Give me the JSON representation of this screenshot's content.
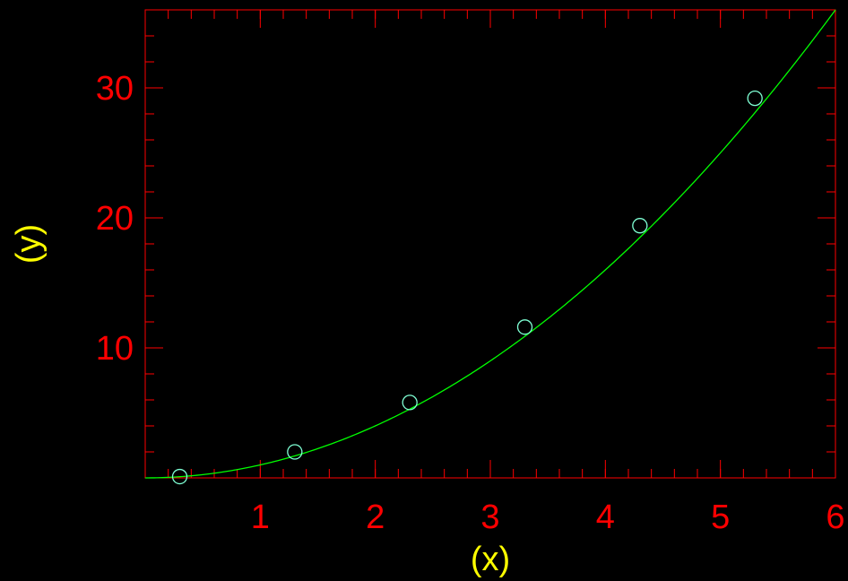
{
  "chart_data": {
    "type": "scatter",
    "title": "",
    "xlabel": "(x)",
    "ylabel": "(y)",
    "xlim": [
      0,
      6
    ],
    "ylim": [
      0,
      36
    ],
    "x_ticks": [
      1,
      2,
      3,
      4,
      5,
      6
    ],
    "y_ticks": [
      10,
      20,
      30
    ],
    "x_minor_step": 0.2,
    "y_minor_step": 2,
    "grid": false,
    "series": [
      {
        "kind": "points",
        "marker": "open-circle",
        "x": [
          0.3,
          1.3,
          2.3,
          3.3,
          4.3,
          5.3
        ],
        "y": [
          0.1,
          2.0,
          5.8,
          11.6,
          19.4,
          29.2
        ]
      },
      {
        "kind": "curve",
        "function": "y = x^2",
        "x_range": [
          0,
          6
        ]
      }
    ],
    "colors": {
      "background": "#000000",
      "axes": "#ff0000",
      "tick_labels": "#ff0000",
      "axis_labels": "#ffff00",
      "markers": "#7fffd4",
      "curve": "#00ff00"
    }
  }
}
